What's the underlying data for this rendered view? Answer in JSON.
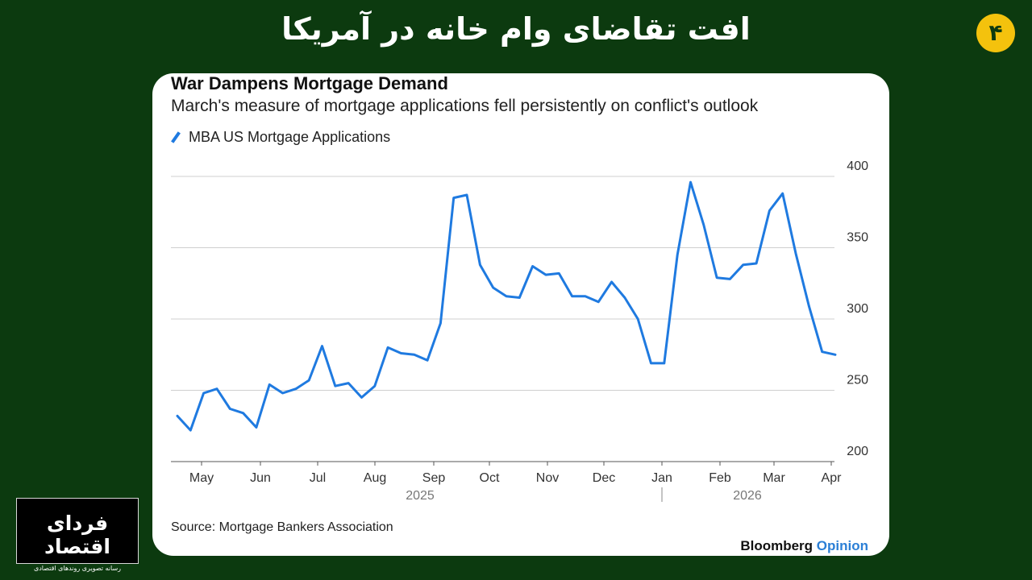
{
  "header": {
    "title": "افت تقاضای وام خانه در آمریکا",
    "slide_number": "۴"
  },
  "logo": {
    "name": "فردای اقتصاد",
    "tagline": "رسانه تصویری روندهای اقتصادی"
  },
  "chart_data": {
    "type": "line",
    "title": "War Dampens Mortgage Demand",
    "subtitle": "March's measure of mortgage applications fell persistently on conflict's outlook",
    "series": [
      {
        "name": "MBA US Mortgage Applications",
        "color": "#1f7ae0",
        "values": [
          232,
          222,
          248,
          251,
          237,
          234,
          224,
          254,
          248,
          251,
          257,
          281,
          253,
          255,
          245,
          253,
          280,
          276,
          275,
          271,
          297,
          385,
          387,
          338,
          322,
          316,
          315,
          337,
          331,
          332,
          316,
          316,
          312,
          326,
          315,
          300,
          269,
          269,
          345,
          396,
          366,
          329,
          328,
          338,
          339,
          376,
          388,
          346,
          309,
          277,
          275
        ]
      }
    ],
    "x_ticks": [
      "May",
      "Jun",
      "Jul",
      "Aug",
      "Sep",
      "Oct",
      "Nov",
      "Dec",
      "Jan",
      "Feb",
      "Mar",
      "Apr"
    ],
    "year_labels": [
      "2025",
      "2026"
    ],
    "ylim": [
      200,
      400
    ],
    "y_ticks": [
      200,
      250,
      300,
      350,
      400
    ],
    "y_axis_side": "right",
    "grid": true,
    "legend": "top-left"
  },
  "source": "Source: Mortgage Bankers Association",
  "brand": {
    "name": "Bloomberg",
    "accent": "Opinion"
  }
}
